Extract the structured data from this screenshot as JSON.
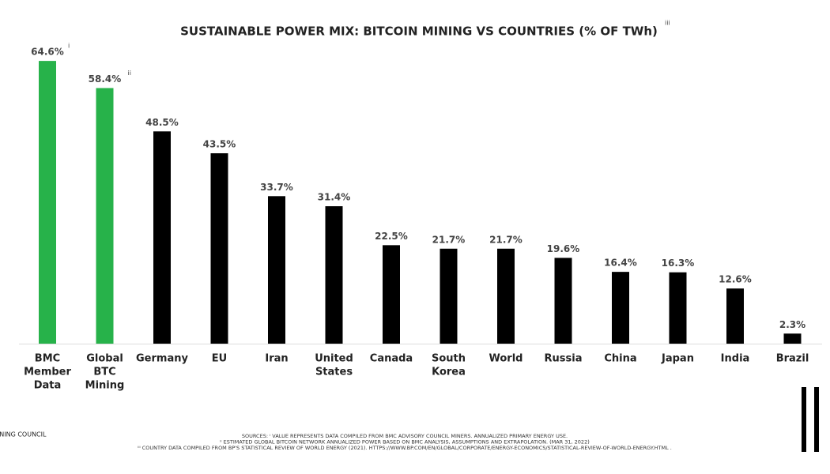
{
  "chart_data": {
    "type": "bar",
    "title": "SUSTAINABLE POWER MIX: BITCOIN MINING VS COUNTRIES (% OF TWh)",
    "title_note": "iii",
    "categories": [
      [
        "BMC",
        "Member",
        "Data"
      ],
      [
        "Global",
        "BTC",
        "Mining"
      ],
      [
        "Germany"
      ],
      [
        "EU"
      ],
      [
        "Iran"
      ],
      [
        "United",
        "States"
      ],
      [
        "Canada"
      ],
      [
        "South",
        "Korea"
      ],
      [
        "World"
      ],
      [
        "Russia"
      ],
      [
        "China"
      ],
      [
        "Japan"
      ],
      [
        "India"
      ],
      [
        "Brazil"
      ]
    ],
    "values": [
      64.6,
      58.4,
      48.5,
      43.5,
      33.7,
      31.4,
      22.5,
      21.7,
      21.7,
      19.6,
      16.4,
      16.3,
      12.6,
      2.3
    ],
    "value_labels": [
      "64.6%",
      "58.4%",
      "48.5%",
      "43.5%",
      "33.7%",
      "31.4%",
      "22.5%",
      "21.7%",
      "21.7%",
      "19.6%",
      "16.4%",
      "16.3%",
      "12.6%",
      "2.3%"
    ],
    "value_notes": [
      "i",
      "ii",
      null,
      null,
      null,
      null,
      null,
      null,
      null,
      null,
      null,
      null,
      null,
      null
    ],
    "colors": [
      "#27b24a",
      "#27b24a",
      "#000000",
      "#000000",
      "#000000",
      "#000000",
      "#000000",
      "#000000",
      "#000000",
      "#000000",
      "#000000",
      "#000000",
      "#000000",
      "#000000"
    ],
    "footer_logo": "MINING COUNCIL",
    "sources": [
      "SOURCES: ⁱ VALUE REPRESENTS DATA COMPILED FROM BMC ADVISORY COUNCIL MINERS. ANNUALIZED PRIMARY ENERGY USE.",
      "ⁱⁱ ESTIMATED GLOBAL BITCOIN NETWORK ANNUALIZED POWER BASED ON BMC ANALYSIS, ASSUMPTIONS AND EXTRAPOLATION. (MAR 31, 2022)",
      "ⁱⁱⁱ COUNTRY DATA COMPILED FROM BP'S STATISTICAL REVIEW OF WORLD ENERGY (2021). HTTPS://WWW.BP.COM/EN/GLOBAL/CORPORATE/ENERGY-ECONOMICS/STATISTICAL-REVIEW-OF-WORLD-ENERGY.HTML ."
    ]
  }
}
